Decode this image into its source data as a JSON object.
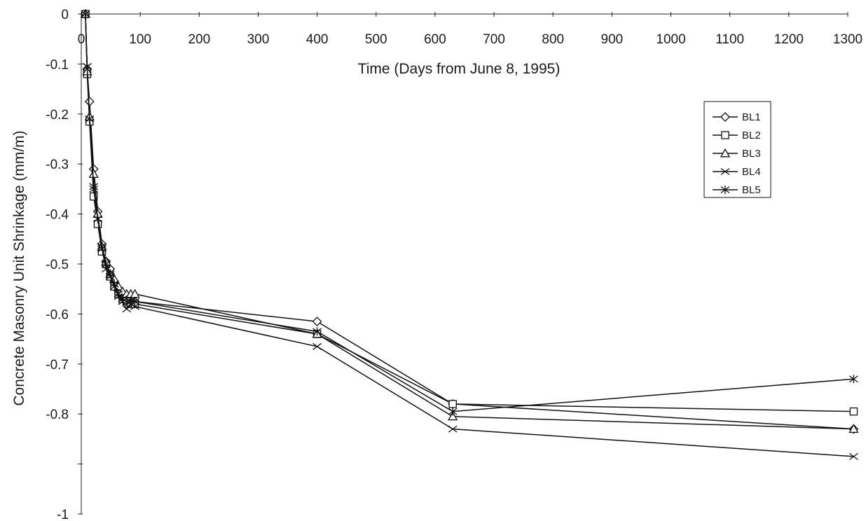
{
  "chart_data": {
    "type": "line",
    "xlabel": "Time (Days from June 8, 1995)",
    "ylabel": "Concrete Masonry Unit Shrinkage (mm/m)",
    "xlim": [
      0,
      1300
    ],
    "ylim": [
      -1,
      0
    ],
    "x_ticks": [
      0,
      100,
      200,
      300,
      400,
      500,
      600,
      700,
      800,
      900,
      1000,
      1100,
      1200,
      1300
    ],
    "x_tick_labels": [
      "0",
      "100",
      "200",
      "300",
      "400",
      "500",
      "600",
      "700",
      "800",
      "900",
      "1000",
      "1100",
      "1200",
      "1300"
    ],
    "y_ticks": [
      0,
      -0.1,
      -0.2,
      -0.3,
      -0.4,
      -0.5,
      -0.6,
      -0.7,
      -0.8,
      -0.9,
      -1
    ],
    "y_tick_labels": [
      "0",
      "-0.1",
      "-0.2",
      "-0.3",
      "-0.4",
      "-0.5",
      "-0.6",
      "-0.7",
      "-0.8",
      "",
      "-1"
    ],
    "x_axis_position": "top",
    "grid": false,
    "legend_position": "top-right",
    "series": [
      {
        "name": "BL1",
        "marker": "diamond",
        "x": [
          7,
          10,
          14,
          21,
          28,
          35,
          42,
          49,
          56,
          63,
          70,
          77,
          84,
          91,
          400,
          630,
          1310
        ],
        "y": [
          0,
          -0.11,
          -0.175,
          -0.31,
          -0.395,
          -0.46,
          -0.495,
          -0.51,
          -0.535,
          -0.555,
          -0.565,
          -0.565,
          -0.575,
          -0.575,
          -0.615,
          -0.78,
          -0.83
        ]
      },
      {
        "name": "BL2",
        "marker": "square",
        "x": [
          7,
          10,
          14,
          21,
          28,
          35,
          42,
          49,
          56,
          63,
          70,
          77,
          84,
          91,
          400,
          630,
          1310
        ],
        "y": [
          0,
          -0.12,
          -0.215,
          -0.365,
          -0.42,
          -0.475,
          -0.5,
          -0.525,
          -0.545,
          -0.56,
          -0.57,
          -0.575,
          -0.58,
          -0.58,
          -0.64,
          -0.78,
          -0.795
        ]
      },
      {
        "name": "BL3",
        "marker": "triangle",
        "x": [
          7,
          10,
          14,
          21,
          28,
          35,
          42,
          49,
          56,
          63,
          70,
          77,
          84,
          91,
          400,
          630,
          1310
        ],
        "y": [
          0,
          -0.115,
          -0.205,
          -0.32,
          -0.4,
          -0.465,
          -0.495,
          -0.52,
          -0.53,
          -0.545,
          -0.555,
          -0.56,
          -0.56,
          -0.56,
          -0.64,
          -0.805,
          -0.83
        ]
      },
      {
        "name": "BL4",
        "marker": "x",
        "x": [
          7,
          10,
          14,
          21,
          28,
          35,
          42,
          49,
          56,
          63,
          70,
          77,
          84,
          91,
          400,
          630,
          1310
        ],
        "y": [
          0,
          -0.105,
          -0.21,
          -0.345,
          -0.41,
          -0.47,
          -0.51,
          -0.525,
          -0.545,
          -0.565,
          -0.575,
          -0.59,
          -0.58,
          -0.585,
          -0.665,
          -0.83,
          -0.885
        ]
      },
      {
        "name": "BL5",
        "marker": "asterisk",
        "x": [
          7,
          10,
          14,
          21,
          28,
          35,
          42,
          49,
          56,
          63,
          70,
          77,
          84,
          91,
          400,
          630,
          1310
        ],
        "y": [
          0,
          -0.105,
          -0.21,
          -0.35,
          -0.41,
          -0.465,
          -0.5,
          -0.52,
          -0.54,
          -0.56,
          -0.57,
          -0.575,
          -0.575,
          -0.575,
          -0.635,
          -0.795,
          -0.73
        ]
      }
    ]
  }
}
